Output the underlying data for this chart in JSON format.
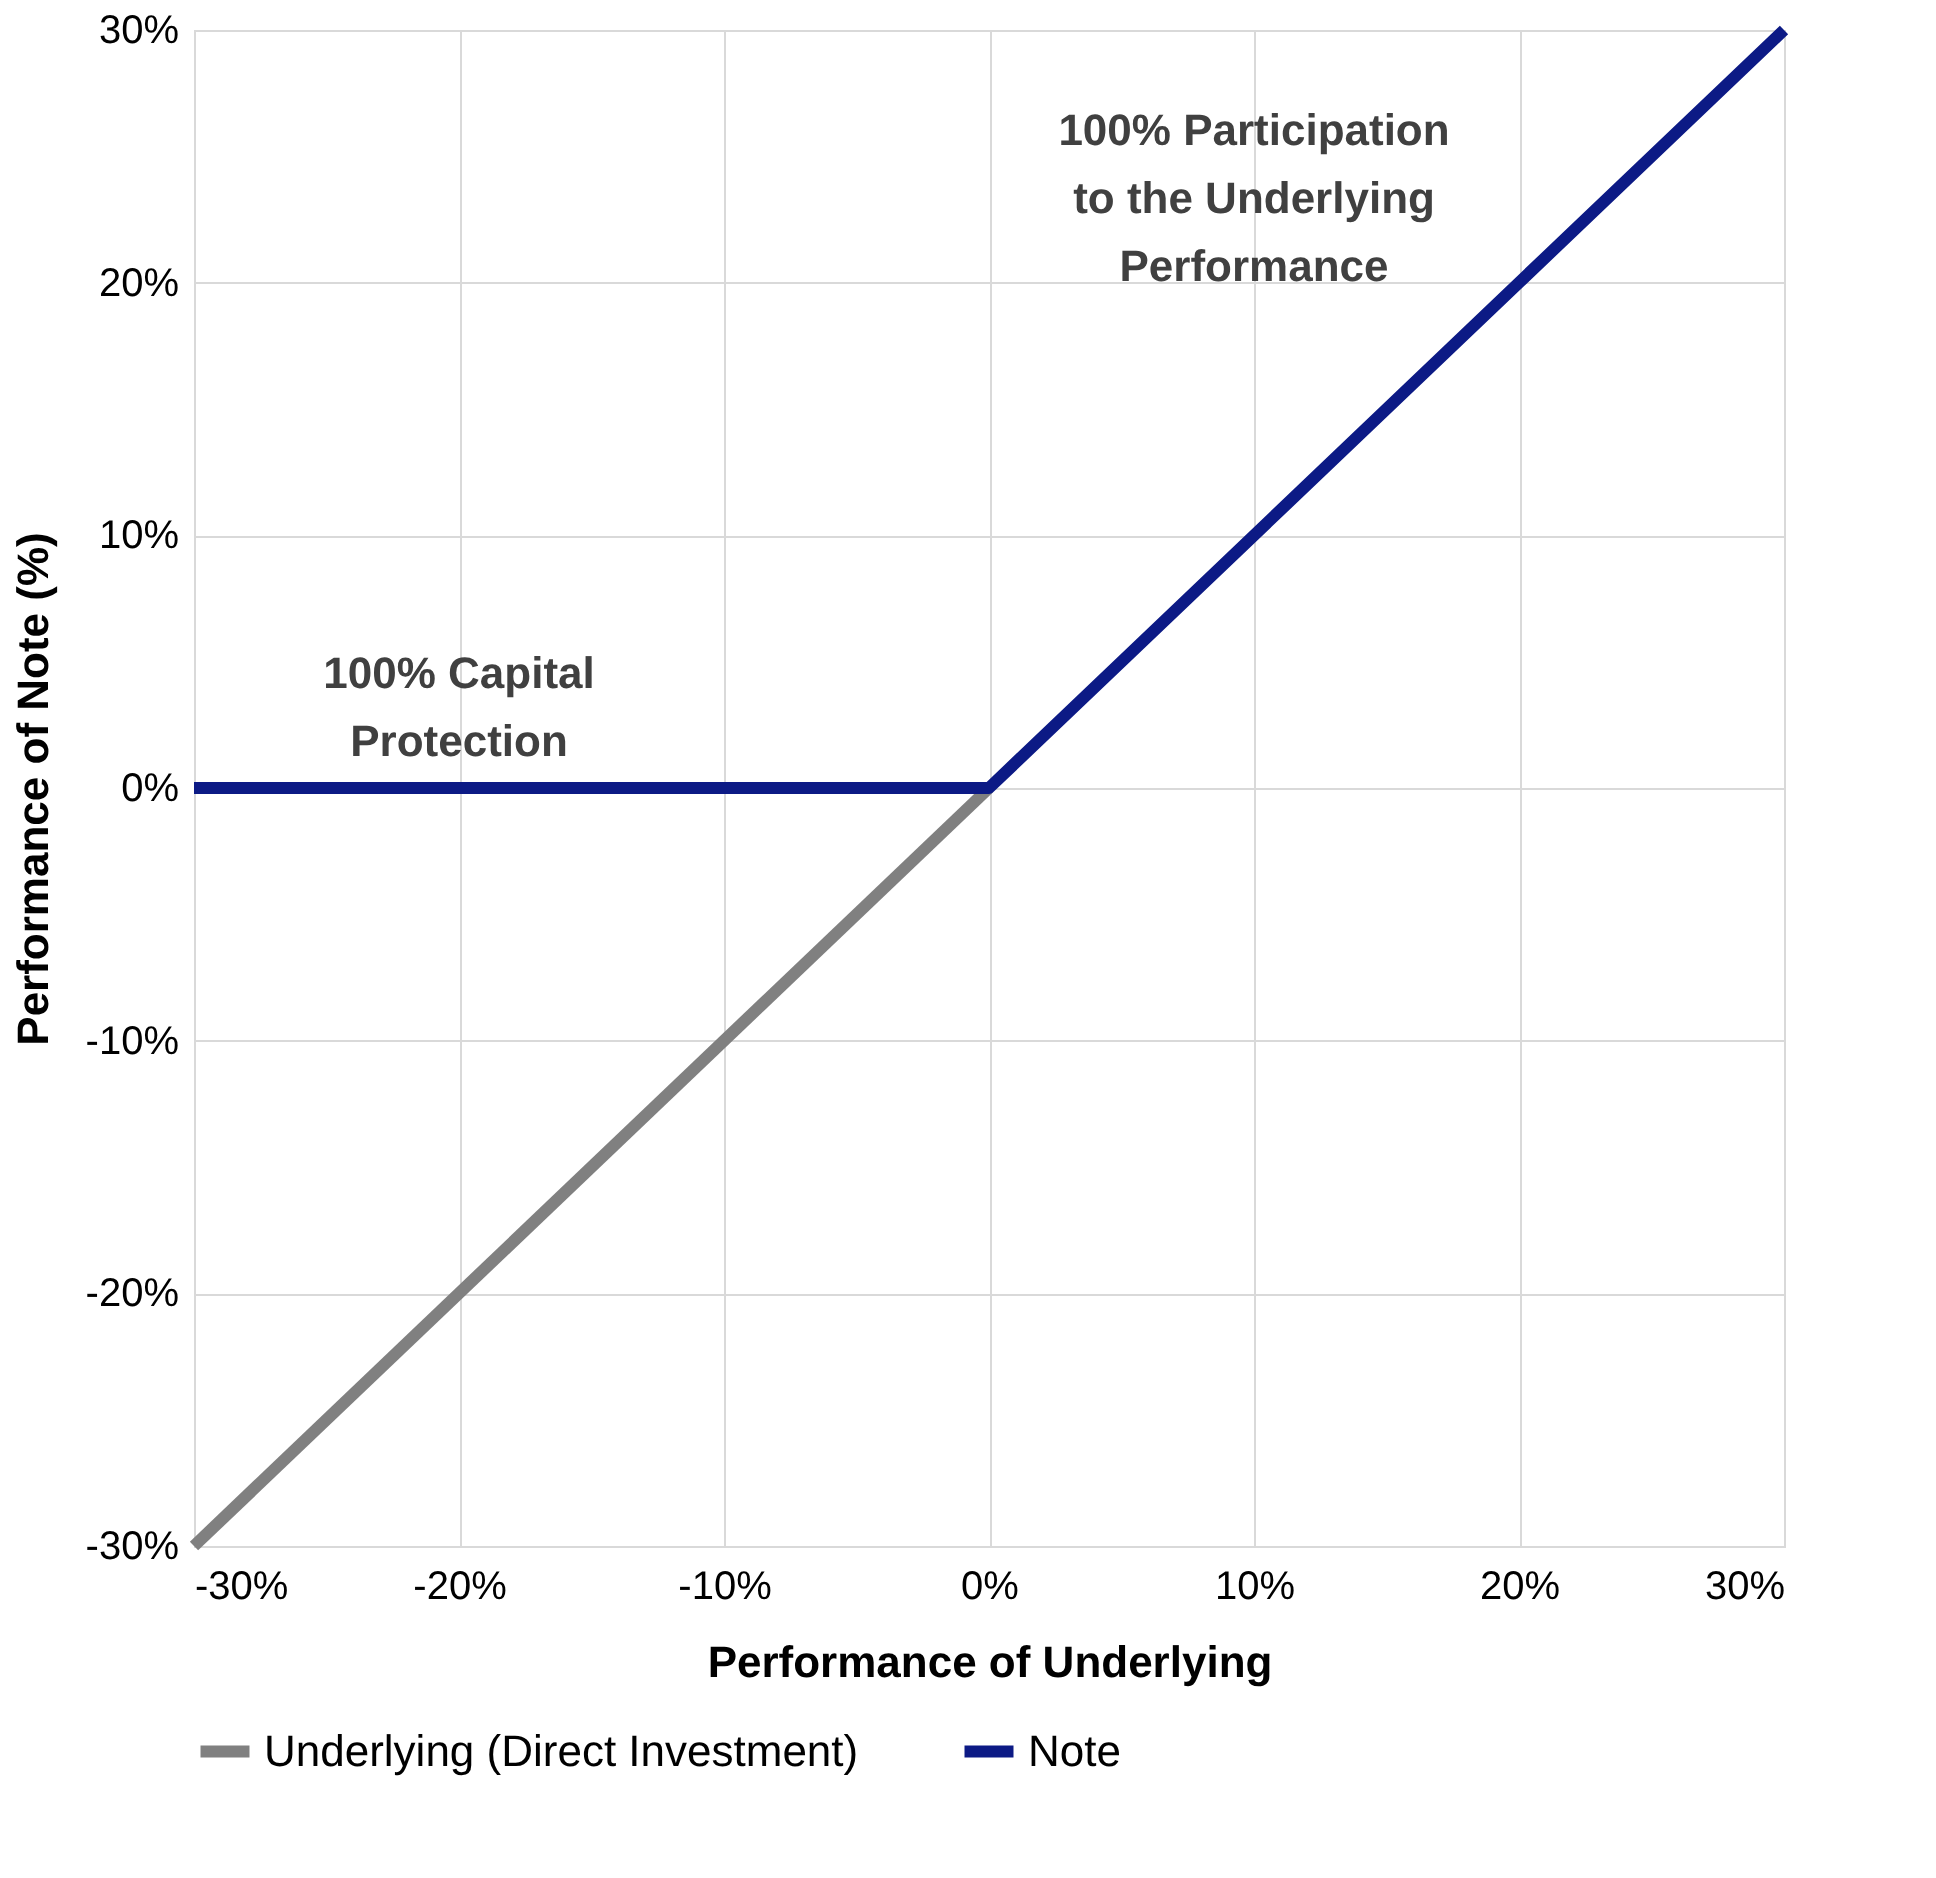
{
  "chart_data": {
    "type": "line",
    "xlabel": "Performance of Underlying",
    "ylabel": "Performance of Note (%)",
    "xlim": [
      -30,
      30
    ],
    "ylim": [
      -30,
      30
    ],
    "xticks": [
      {
        "value": -30,
        "label": "-30%"
      },
      {
        "value": -20,
        "label": "-20%"
      },
      {
        "value": -10,
        "label": "-10%"
      },
      {
        "value": 0,
        "label": "0%"
      },
      {
        "value": 10,
        "label": "10%"
      },
      {
        "value": 20,
        "label": "20%"
      },
      {
        "value": 30,
        "label": "30%"
      }
    ],
    "yticks": [
      {
        "value": -30,
        "label": "-30%"
      },
      {
        "value": -20,
        "label": "-20%"
      },
      {
        "value": -10,
        "label": "-10%"
      },
      {
        "value": 0,
        "label": "0%"
      },
      {
        "value": 10,
        "label": "10%"
      },
      {
        "value": 20,
        "label": "20%"
      },
      {
        "value": 30,
        "label": "30%"
      }
    ],
    "series": [
      {
        "name": "Underlying (Direct Investment)",
        "color": "#808080",
        "x": [
          -30,
          0
        ],
        "values": [
          -30,
          0
        ]
      },
      {
        "name": "Note",
        "color": "#0c1a85",
        "x": [
          -30,
          0,
          30
        ],
        "values": [
          0,
          0,
          30
        ]
      }
    ],
    "annotations": [
      "100% Capital\nProtection",
      "100% Participation\nto the Underlying\nPerformance"
    ],
    "grid": true,
    "legend": "bottom",
    "marker": "none",
    "line_style": "solid"
  }
}
